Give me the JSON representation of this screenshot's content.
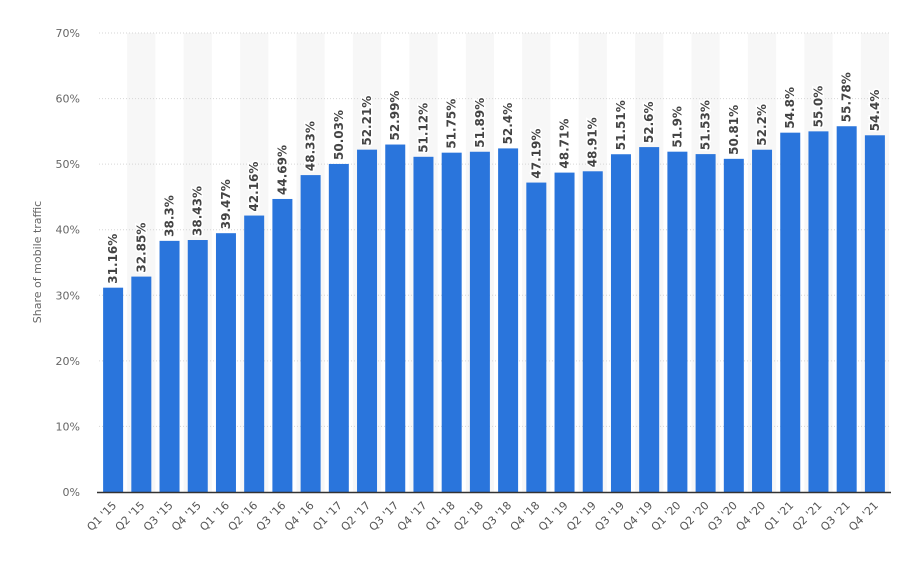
{
  "chart_data": {
    "type": "bar",
    "title": "",
    "xlabel": "",
    "ylabel": "Share of mobile traffic",
    "ylim": [
      0,
      70
    ],
    "yticks": [
      0,
      10,
      20,
      30,
      40,
      50,
      60,
      70
    ],
    "ytick_labels": [
      "0%",
      "10%",
      "20%",
      "30%",
      "40%",
      "50%",
      "60%",
      "70%"
    ],
    "grid": true,
    "bar_color": "#2a75dc",
    "categories": [
      "Q1 '15",
      "Q2 '15",
      "Q3 '15",
      "Q4 '15",
      "Q1 '16",
      "Q2 '16",
      "Q3 '16",
      "Q4 '16",
      "Q1 '17",
      "Q2 '17",
      "Q3 '17",
      "Q4 '17",
      "Q1 '18",
      "Q2 '18",
      "Q3 '18",
      "Q4 '18",
      "Q1 '19",
      "Q2 '19",
      "Q3 '19",
      "Q4 '19",
      "Q1 '20",
      "Q2 '20",
      "Q3 '20",
      "Q4 '20",
      "Q1 '21",
      "Q2 '21",
      "Q3 '21",
      "Q4 '21"
    ],
    "values": [
      31.16,
      32.85,
      38.3,
      38.43,
      39.47,
      42.16,
      44.69,
      48.33,
      50.03,
      52.21,
      52.99,
      51.12,
      51.75,
      51.89,
      52.4,
      47.19,
      48.71,
      48.91,
      51.51,
      52.6,
      51.9,
      51.53,
      50.81,
      52.2,
      54.8,
      55.0,
      55.78,
      54.4
    ],
    "data_labels": [
      "31.16%",
      "32.85%",
      "38.3%",
      "38.43%",
      "39.47%",
      "42.16%",
      "44.69%",
      "48.33%",
      "50.03%",
      "52.21%",
      "52.99%",
      "51.12%",
      "51.75%",
      "51.89%",
      "52.4%",
      "47.19%",
      "48.71%",
      "48.91%",
      "51.51%",
      "52.6%",
      "51.9%",
      "51.53%",
      "50.81%",
      "52.2%",
      "54.8%",
      "55.0%",
      "55.78%",
      "54.4%"
    ]
  }
}
